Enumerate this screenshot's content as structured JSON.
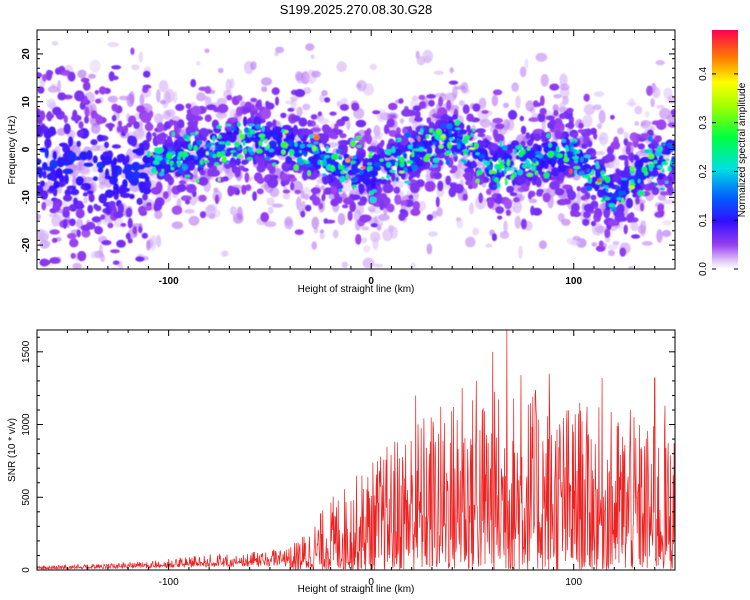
{
  "title": "S199.2025.270.08.30.G28",
  "chart_data": [
    {
      "type": "heatmap",
      "name": "spectrogram",
      "xlabel": "Height of straight line (km)",
      "ylabel": "Frequency (Hz)",
      "xlim": [
        -165,
        150
      ],
      "ylim": [
        -25,
        25
      ],
      "xticks": [
        -100,
        0,
        100
      ],
      "yticks": [
        -20,
        -10,
        0,
        10,
        20
      ],
      "ridge": {
        "x": [
          -165,
          -140,
          -120,
          -100,
          -80,
          -60,
          -40,
          -20,
          0,
          20,
          40,
          60,
          80,
          100,
          110,
          120,
          135,
          150
        ],
        "freq": [
          -2,
          -4,
          -5,
          -2,
          0,
          2,
          1,
          -3,
          -5,
          -1,
          3,
          -4,
          -2,
          -1,
          -6,
          -10,
          -4,
          -1
        ]
      },
      "colorbar": {
        "label": "Normalized spectral amplitude",
        "min": 0.0,
        "max": 0.49,
        "ticks": [
          "0.0",
          "0.1",
          "0.2",
          "0.3",
          "0.4"
        ],
        "tick_values": [
          0.0,
          0.1,
          0.2,
          0.3,
          0.4
        ]
      }
    },
    {
      "type": "line",
      "name": "snr",
      "xlabel": "Height of straight line (km)",
      "ylabel": "SNR (10 * v/v)",
      "xlim": [
        -165,
        150
      ],
      "ylim": [
        0,
        1650
      ],
      "xticks": [
        -100,
        0,
        100
      ],
      "yticks": [
        0,
        500,
        1000,
        1500
      ],
      "color": "#ee2020",
      "envelope": {
        "x": [
          -165,
          -130,
          -110,
          -80,
          -60,
          -40,
          -30,
          -20,
          0,
          20,
          40,
          60,
          80,
          100,
          120,
          140,
          150
        ],
        "peak": [
          30,
          45,
          60,
          110,
          120,
          160,
          300,
          500,
          750,
          1050,
          1200,
          1250,
          1250,
          1150,
          1100,
          1000,
          950
        ]
      },
      "spikes": [
        {
          "x": 22,
          "y": 1200
        },
        {
          "x": 45,
          "y": 1250
        },
        {
          "x": 52,
          "y": 1300
        },
        {
          "x": 60,
          "y": 1500
        },
        {
          "x": 67,
          "y": 1650
        },
        {
          "x": 74,
          "y": 1340
        },
        {
          "x": 81,
          "y": 1210
        },
        {
          "x": 88,
          "y": 1350
        },
        {
          "x": 103,
          "y": 1150
        },
        {
          "x": 114,
          "y": 1320
        },
        {
          "x": 128,
          "y": 1100
        },
        {
          "x": 140,
          "y": 1320
        },
        {
          "x": 145,
          "y": 1130
        }
      ]
    }
  ]
}
